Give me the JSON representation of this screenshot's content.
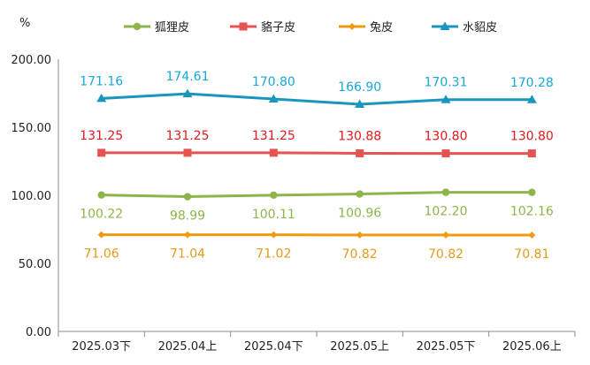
{
  "chart_data": {
    "type": "line",
    "ylabel": "%",
    "ylim": [
      0,
      200
    ],
    "yticks": [
      "0.00",
      "50.00",
      "100.00",
      "150.00",
      "200.00"
    ],
    "categories": [
      "2025.03下",
      "2025.04上",
      "2025.04下",
      "2025.05上",
      "2025.05下",
      "2025.06上"
    ],
    "legend_position": "top",
    "grid": false,
    "series": [
      {
        "name": "狐狸皮",
        "color": "#8DB54B",
        "marker": "circle",
        "values": [
          100.22,
          98.99,
          100.11,
          100.96,
          102.2,
          102.16
        ],
        "labels": [
          "100.22",
          "98.99",
          "100.11",
          "100.96",
          "102.20",
          "102.16"
        ],
        "label_position": "below"
      },
      {
        "name": "貉子皮",
        "color": "#E8524F",
        "marker": "square",
        "label_color": "#E01A1A",
        "values": [
          131.25,
          131.25,
          131.25,
          130.88,
          130.8,
          130.8
        ],
        "labels": [
          "131.25",
          "131.25",
          "131.25",
          "130.88",
          "130.80",
          "130.80"
        ],
        "label_position": "above"
      },
      {
        "name": "兔皮",
        "color": "#F09A0D",
        "marker": "diamond",
        "label_color": "#E39A1E",
        "values": [
          71.06,
          71.04,
          71.02,
          70.82,
          70.82,
          70.81
        ],
        "labels": [
          "71.06",
          "71.04",
          "71.02",
          "70.82",
          "70.82",
          "70.81"
        ],
        "label_position": "below"
      },
      {
        "name": "水貂皮",
        "color": "#1A96BE",
        "marker": "triangle",
        "label_color": "#19A7DA",
        "values": [
          171.16,
          174.61,
          170.8,
          166.9,
          170.31,
          170.28
        ],
        "labels": [
          "171.16",
          "174.61",
          "170.80",
          "166.90",
          "170.31",
          "170.28"
        ],
        "label_position": "above"
      }
    ]
  }
}
